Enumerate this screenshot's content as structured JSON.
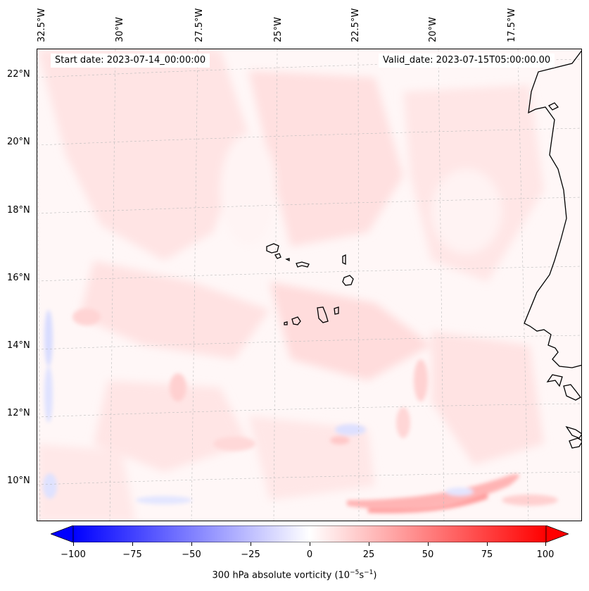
{
  "map": {
    "lon_labels": [
      "32.5°W",
      "30°W",
      "27.5°W",
      "25°W",
      "22.5°W",
      "20°W",
      "17.5°W"
    ],
    "lat_labels": [
      "22°N",
      "20°N",
      "18°N",
      "16°N",
      "14°N",
      "12°N",
      "10°N"
    ],
    "start_date": "Start date: 2023-07-14_00:00:00",
    "valid_date": "Valid_date: 2023-07-15T05:00:00.00",
    "colormap": "bwr",
    "background_color": "#fff7f7",
    "coastline_color": "#000000"
  },
  "colorbar": {
    "ticks": [
      "−100",
      "−75",
      "−50",
      "−25",
      "0",
      "25",
      "50",
      "75",
      "100"
    ],
    "label_prefix": "300 hPa absolute vorticity (10",
    "label_exp1": "−5",
    "label_mid": "s",
    "label_exp2": "−1",
    "label_suffix": ")",
    "min": -100,
    "max": 100,
    "neg_color": "#0000ff",
    "pos_color": "#ff0000"
  }
}
